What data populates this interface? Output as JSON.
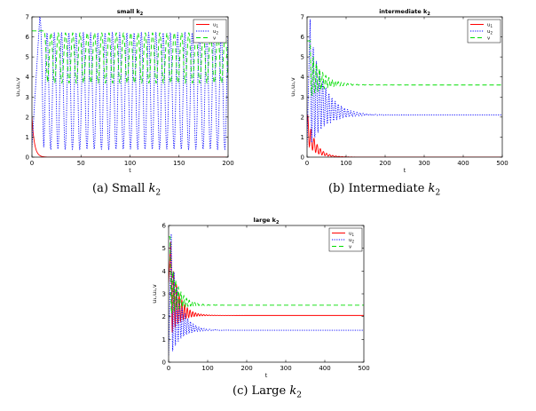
{
  "figure": {
    "captions": [
      {
        "prefix": "(a) Small ",
        "k": "k",
        "sub": "2"
      },
      {
        "prefix": "(b) Intermediate ",
        "k": "k",
        "sub": "2"
      },
      {
        "prefix": "(c) Large ",
        "k": "k",
        "sub": "2"
      }
    ]
  },
  "chart_data": [
    {
      "type": "line",
      "title": "small k",
      "title_sub": "2",
      "xlabel": "t",
      "ylabel": "u₁,u₂,v",
      "xlim": [
        0,
        200
      ],
      "ylim": [
        0,
        7
      ],
      "xticks": [
        0,
        50,
        100,
        150,
        200
      ],
      "yticks": [
        0,
        1,
        2,
        3,
        4,
        5,
        6,
        7
      ],
      "legend": "top-right",
      "series": [
        {
          "name": "u1",
          "color": "#ff0000",
          "dash": "solid",
          "model": "decay",
          "start": 2.0,
          "end": 0.0,
          "amp0": 0,
          "tau": 2.5,
          "period": 8
        },
        {
          "name": "u2",
          "color": "#0000ff",
          "dash": "dotted",
          "model": "sustained",
          "start": 0.5,
          "peak": 7.0,
          "peak_t": 8,
          "center": 3.3,
          "amp": 2.9,
          "period": 7.4
        },
        {
          "name": "v",
          "color": "#00dd00",
          "dash": "dashed",
          "model": "sustained",
          "start": 6.3,
          "peak": 6.3,
          "peak_t": 12,
          "center": 4.95,
          "amp": 1.25,
          "period": 7.4
        }
      ]
    },
    {
      "type": "line",
      "title": "intermediate k",
      "title_sub": "2",
      "xlabel": "t",
      "ylabel": "u₁,u₂,v",
      "xlim": [
        0,
        500
      ],
      "ylim": [
        0,
        7
      ],
      "xticks": [
        0,
        100,
        200,
        300,
        400,
        500
      ],
      "yticks": [
        0,
        1,
        2,
        3,
        4,
        5,
        6,
        7
      ],
      "legend": "top-right",
      "series": [
        {
          "name": "u1",
          "color": "#ff0000",
          "dash": "solid",
          "model": "decay",
          "start": 1.5,
          "end": 0.0,
          "amp0": 0.8,
          "tau": 20,
          "period": 8
        },
        {
          "name": "u2",
          "color": "#0000ff",
          "dash": "dotted",
          "model": "damped",
          "start": 0.5,
          "peak": 7.0,
          "peak_t": 8,
          "end": 2.1,
          "amp0": 2.6,
          "tau": 35,
          "period": 8
        },
        {
          "name": "v",
          "color": "#00dd00",
          "dash": "dashed",
          "model": "damped",
          "start": 5.8,
          "peak": 5.8,
          "peak_t": 8,
          "end": 3.6,
          "amp0": 1.0,
          "tau": 30,
          "period": 8
        }
      ]
    },
    {
      "type": "line",
      "title": "large k",
      "title_sub": "2",
      "xlabel": "t",
      "ylabel": "u₁,u₂,v",
      "xlim": [
        0,
        500
      ],
      "ylim": [
        0,
        6
      ],
      "xticks": [
        0,
        100,
        200,
        300,
        400,
        500
      ],
      "yticks": [
        0,
        1,
        2,
        3,
        4,
        5,
        6
      ],
      "legend": "top-right",
      "series": [
        {
          "name": "u1",
          "color": "#ff0000",
          "dash": "solid",
          "model": "damped",
          "start": 3.5,
          "peak": 5.4,
          "peak_t": 6,
          "end": 2.05,
          "amp0": 1.5,
          "tau": 20,
          "period": 7
        },
        {
          "name": "u2",
          "color": "#0000ff",
          "dash": "dotted",
          "model": "damped",
          "start": 0.3,
          "peak": 5.8,
          "peak_t": 7,
          "end": 1.4,
          "amp0": 1.8,
          "tau": 22,
          "period": 7
        },
        {
          "name": "v",
          "color": "#00dd00",
          "dash": "dashed",
          "model": "damped",
          "start": 5.5,
          "peak": 5.5,
          "peak_t": 4,
          "end": 2.5,
          "amp0": 0.7,
          "tau": 22,
          "period": 7
        }
      ]
    }
  ]
}
